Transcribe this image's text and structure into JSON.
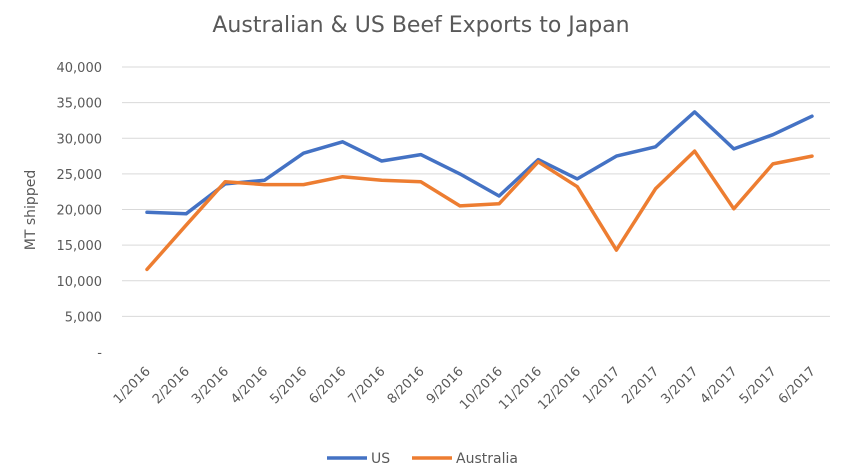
{
  "chart_data": {
    "type": "line",
    "title": "Australian & US Beef Exports to Japan",
    "xlabel": "",
    "ylabel": "MT shipped",
    "ylim": [
      0,
      40000
    ],
    "yticks": [
      "-",
      "5,000",
      "10,000",
      "15,000",
      "20,000",
      "25,000",
      "30,000",
      "35,000",
      "40,000"
    ],
    "ytick_values": [
      0,
      5000,
      10000,
      15000,
      20000,
      25000,
      30000,
      35000,
      40000
    ],
    "categories": [
      "1/2016",
      "2/2016",
      "3/2016",
      "4/2016",
      "5/2016",
      "6/2016",
      "7/2016",
      "8/2016",
      "9/2016",
      "10/2016",
      "11/2016",
      "12/2016",
      "1/2017",
      "2/2017",
      "3/2017",
      "4/2017",
      "5/2017",
      "6/2017"
    ],
    "series": [
      {
        "name": "US",
        "color": "#4472c4",
        "values": [
          19600,
          19400,
          23600,
          24100,
          27900,
          29500,
          26800,
          27700,
          25000,
          21900,
          27000,
          24300,
          27500,
          28800,
          33700,
          28500,
          30500,
          33100
        ]
      },
      {
        "name": "Australia",
        "color": "#ed7d31",
        "values": [
          11600,
          17800,
          23900,
          23500,
          23500,
          24600,
          24100,
          23900,
          20500,
          20800,
          26700,
          23200,
          14300,
          22900,
          28200,
          20100,
          26400,
          27500
        ]
      }
    ],
    "grid": true,
    "legend": "bottom"
  }
}
